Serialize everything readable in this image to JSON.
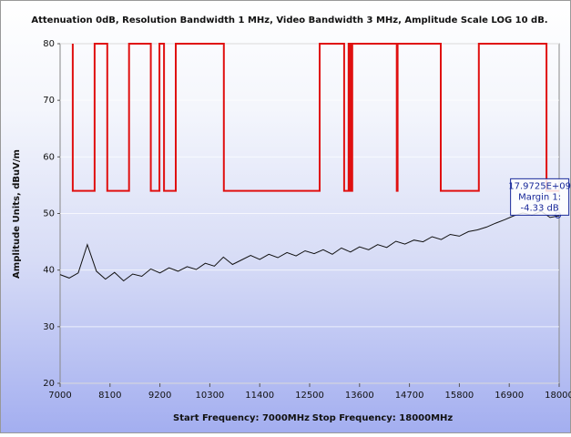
{
  "chart_data": {
    "type": "line",
    "title": "Attenuation 0dB, Resolution Bandwidth 1 MHz, Video Bandwidth 3 MHz, Amplitude Scale LOG 10 dB.",
    "y_label": "Amplitude Units, dBuV/m",
    "footer": [
      "Start Frequency: 7000MHz",
      "Stop Frequency: 18000MHz"
    ],
    "xlim": [
      7000,
      18000
    ],
    "xticks": [
      7000,
      8100,
      9200,
      10300,
      11400,
      12500,
      13600,
      14700,
      15800,
      16900,
      18000
    ],
    "ylim": [
      20,
      80
    ],
    "yticks": [
      20,
      30,
      40,
      50,
      60,
      70,
      80
    ],
    "grid": true,
    "series": [
      {
        "color": "#e01010",
        "x": [
          7280,
          7280,
          7760,
          7760,
          8040,
          8040,
          8520,
          8520,
          9000,
          9000,
          9190,
          9190,
          9290,
          9290,
          9550,
          9550,
          10610,
          10610,
          12720,
          12720,
          13260,
          13260,
          13360,
          13360,
          13400,
          13400,
          13440,
          13440,
          14420,
          14420,
          14440,
          14440,
          15390,
          15390,
          16230,
          16230,
          17720,
          17720,
          18000
        ],
        "values": [
          80,
          54,
          54,
          80,
          80,
          54,
          54,
          80,
          80,
          54,
          54,
          80,
          80,
          54,
          54,
          80,
          80,
          54,
          54,
          80,
          80,
          54,
          54,
          80,
          80,
          54,
          54,
          80,
          80,
          54,
          54,
          80,
          80,
          54,
          54,
          80,
          80,
          54,
          54
        ]
      },
      {
        "color": "#111111",
        "x": [
          7000,
          7200,
          7400,
          7600,
          7800,
          8000,
          8200,
          8400,
          8600,
          8800,
          9000,
          9200,
          9400,
          9600,
          9800,
          10000,
          10200,
          10400,
          10600,
          10800,
          11000,
          11200,
          11400,
          11600,
          11800,
          12000,
          12200,
          12400,
          12600,
          12800,
          13000,
          13200,
          13400,
          13600,
          13800,
          14000,
          14200,
          14400,
          14600,
          14800,
          15000,
          15200,
          15400,
          15600,
          15800,
          16000,
          16200,
          16400,
          16600,
          16800,
          17000,
          17200,
          17400,
          17600,
          17800,
          18000
        ],
        "values": [
          39.2,
          38.6,
          39.5,
          44.5,
          39.8,
          38.4,
          39.6,
          38.1,
          39.3,
          38.9,
          40.2,
          39.5,
          40.4,
          39.8,
          40.6,
          40.1,
          41.2,
          40.7,
          42.3,
          41.0,
          41.8,
          42.6,
          41.9,
          42.8,
          42.2,
          43.1,
          42.5,
          43.4,
          42.9,
          43.6,
          42.8,
          43.9,
          43.2,
          44.1,
          43.6,
          44.5,
          44.0,
          45.1,
          44.6,
          45.3,
          45.0,
          45.9,
          45.4,
          46.3,
          46.0,
          46.8,
          47.1,
          47.6,
          48.3,
          48.9,
          49.6,
          50.1,
          49.7,
          50.4,
          49.3,
          49.6
        ]
      }
    ],
    "annotation": {
      "x": 17972.5,
      "y": 49.7,
      "lines": [
        "17.9725E+09",
        "Margin 1:",
        "-4.33 dB"
      ]
    }
  }
}
